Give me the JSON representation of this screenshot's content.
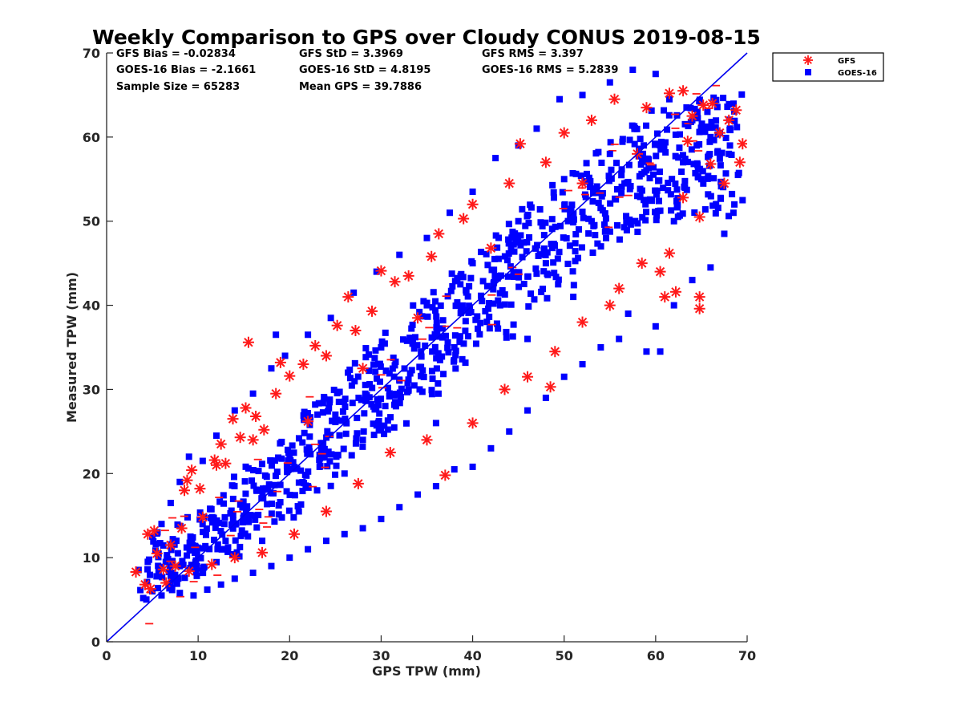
{
  "chart_data": {
    "type": "scatter",
    "title": "Weekly Comparison to GPS over Cloudy CONUS 2019-08-15",
    "xlabel": "GPS TPW (mm)",
    "ylabel": "Measured TPW (mm)",
    "xlim": [
      0,
      70
    ],
    "ylim": [
      0,
      70
    ],
    "xticks": [
      0,
      10,
      20,
      30,
      40,
      50,
      60,
      70
    ],
    "yticks": [
      0,
      10,
      20,
      30,
      40,
      50,
      60,
      70
    ],
    "grid": false,
    "legend_position": "outside-top-right",
    "reference_line": {
      "x": [
        0,
        70
      ],
      "y": [
        0,
        70
      ],
      "color": "#0000ee"
    },
    "stats": [
      [
        "GFS Bias = -0.02834",
        "GFS StD = 3.3969",
        "GFS RMS = 3.397"
      ],
      [
        "GOES-16 Bias = -2.1661",
        "GOES-16 StD = 4.8195",
        "GOES-16 RMS = 5.2839"
      ],
      [
        "Sample Size = 65283",
        "Mean GPS = 39.7886",
        ""
      ]
    ],
    "series": [
      {
        "name": "GFS",
        "marker": "asterisk",
        "color": "#ff1a1a",
        "points": [
          [
            3.2,
            8.3
          ],
          [
            4.5,
            12.8
          ],
          [
            4.8,
            6.3
          ],
          [
            5.5,
            10.5
          ],
          [
            6.2,
            8.6
          ],
          [
            7.0,
            11.5
          ],
          [
            8.2,
            13.5
          ],
          [
            8.8,
            19.2
          ],
          [
            9.3,
            20.4
          ],
          [
            10.2,
            18.2
          ],
          [
            11.8,
            21.6
          ],
          [
            12.5,
            23.5
          ],
          [
            13.0,
            21.2
          ],
          [
            13.8,
            26.5
          ],
          [
            14.6,
            24.3
          ],
          [
            15.2,
            27.8
          ],
          [
            15.5,
            35.6
          ],
          [
            16.3,
            26.8
          ],
          [
            17.2,
            25.2
          ],
          [
            18.5,
            29.5
          ],
          [
            19.0,
            33.2
          ],
          [
            20.0,
            31.6
          ],
          [
            21.5,
            33.0
          ],
          [
            22.8,
            35.2
          ],
          [
            24.0,
            34.0
          ],
          [
            25.2,
            37.6
          ],
          [
            26.4,
            41.0
          ],
          [
            27.2,
            37.0
          ],
          [
            29.0,
            39.3
          ],
          [
            30.0,
            44.1
          ],
          [
            31.5,
            42.8
          ],
          [
            33.0,
            43.5
          ],
          [
            35.5,
            45.8
          ],
          [
            36.3,
            48.5
          ],
          [
            39.0,
            50.3
          ],
          [
            40.0,
            52.0
          ],
          [
            44.0,
            54.5
          ],
          [
            45.2,
            59.2
          ],
          [
            48.0,
            57.0
          ],
          [
            50.0,
            60.5
          ],
          [
            53.0,
            62.0
          ],
          [
            55.5,
            64.5
          ],
          [
            59.0,
            63.5
          ],
          [
            61.5,
            65.2
          ],
          [
            63.0,
            65.5
          ],
          [
            64.0,
            62.5
          ],
          [
            65.2,
            63.8
          ],
          [
            66.2,
            64.0
          ],
          [
            67.0,
            60.5
          ],
          [
            68.0,
            62.0
          ],
          [
            68.8,
            63.2
          ],
          [
            69.5,
            59.2
          ],
          [
            69.2,
            57.0
          ],
          [
            67.5,
            54.5
          ],
          [
            66.0,
            56.8
          ],
          [
            64.8,
            50.5
          ],
          [
            63.0,
            52.8
          ],
          [
            61.5,
            46.2
          ],
          [
            60.5,
            44.0
          ],
          [
            62.2,
            41.6
          ],
          [
            61.0,
            41.0
          ],
          [
            64.8,
            41.0
          ],
          [
            64.8,
            39.6
          ],
          [
            58.5,
            45.0
          ],
          [
            56.0,
            42.0
          ],
          [
            55.0,
            40.0
          ],
          [
            52.0,
            38.0
          ],
          [
            49.0,
            34.5
          ],
          [
            48.5,
            30.3
          ],
          [
            46.0,
            31.5
          ],
          [
            43.5,
            30.0
          ],
          [
            40.0,
            26.0
          ],
          [
            37.0,
            19.8
          ],
          [
            35.0,
            24.0
          ],
          [
            31.0,
            22.5
          ],
          [
            27.5,
            18.8
          ],
          [
            24.0,
            15.5
          ],
          [
            20.5,
            12.8
          ],
          [
            17.0,
            10.6
          ],
          [
            14.0,
            10.0
          ],
          [
            11.5,
            9.2
          ],
          [
            9.0,
            8.4
          ],
          [
            6.5,
            7.0
          ],
          [
            4.2,
            6.8
          ],
          [
            22.0,
            26.2
          ],
          [
            28.0,
            32.5
          ],
          [
            34.0,
            38.5
          ],
          [
            42.0,
            46.8
          ],
          [
            52.0,
            54.5
          ],
          [
            58.0,
            58.0
          ],
          [
            63.5,
            59.5
          ],
          [
            10.5,
            14.8
          ],
          [
            7.5,
            9.0
          ],
          [
            5.2,
            13.2
          ],
          [
            8.5,
            18.0
          ],
          [
            16.0,
            24.0
          ],
          [
            12.0,
            21.0
          ]
        ]
      },
      {
        "name": "GOES-16",
        "marker": "square",
        "color": "#0000ff",
        "points": [
          [
            4.0,
            5.2
          ],
          [
            5.0,
            6.0
          ],
          [
            6.0,
            5.5
          ],
          [
            7.0,
            6.8
          ],
          [
            8.0,
            5.8
          ],
          [
            9.5,
            5.5
          ],
          [
            11.0,
            6.2
          ],
          [
            12.5,
            6.8
          ],
          [
            14.0,
            7.5
          ],
          [
            16.0,
            8.2
          ],
          [
            18.0,
            9.0
          ],
          [
            20.0,
            10.0
          ],
          [
            22.0,
            11.0
          ],
          [
            24.0,
            12.0
          ],
          [
            26.0,
            12.8
          ],
          [
            28.0,
            13.5
          ],
          [
            30.0,
            14.6
          ],
          [
            32.0,
            16.0
          ],
          [
            34.0,
            17.5
          ],
          [
            36.0,
            18.5
          ],
          [
            38.0,
            20.5
          ],
          [
            40.0,
            20.8
          ],
          [
            42.0,
            23.0
          ],
          [
            44.0,
            25.0
          ],
          [
            46.0,
            27.5
          ],
          [
            48.0,
            29.0
          ],
          [
            50.0,
            31.5
          ],
          [
            52.0,
            33.0
          ],
          [
            54.0,
            35.0
          ],
          [
            56.0,
            36.0
          ],
          [
            59.0,
            34.5
          ],
          [
            60.0,
            37.5
          ],
          [
            62.0,
            40.0
          ],
          [
            64.0,
            43.0
          ],
          [
            66.0,
            44.5
          ],
          [
            67.5,
            48.5
          ],
          [
            68.5,
            51.0
          ],
          [
            69.5,
            52.5
          ],
          [
            69.0,
            55.5
          ],
          [
            68.0,
            58.0
          ],
          [
            66.0,
            60.0
          ],
          [
            64.0,
            62.0
          ],
          [
            61.5,
            64.5
          ],
          [
            60.0,
            67.5
          ],
          [
            57.5,
            68.0
          ],
          [
            55.0,
            66.5
          ],
          [
            52.0,
            65.0
          ],
          [
            49.5,
            64.5
          ],
          [
            47.0,
            61.0
          ],
          [
            45.0,
            59.0
          ],
          [
            42.5,
            57.5
          ],
          [
            40.0,
            53.5
          ],
          [
            37.5,
            51.0
          ],
          [
            35.0,
            48.0
          ],
          [
            32.0,
            46.0
          ],
          [
            29.5,
            44.0
          ],
          [
            27.0,
            41.5
          ],
          [
            24.5,
            38.5
          ],
          [
            22.0,
            36.5
          ],
          [
            19.5,
            34.0
          ],
          [
            18.0,
            32.5
          ],
          [
            16.0,
            29.5
          ],
          [
            14.0,
            27.5
          ],
          [
            12.0,
            24.5
          ],
          [
            10.5,
            21.5
          ],
          [
            9.0,
            22.0
          ],
          [
            8.0,
            19.0
          ],
          [
            7.0,
            16.5
          ],
          [
            6.0,
            14.0
          ],
          [
            5.0,
            12.5
          ],
          [
            4.5,
            9.5
          ],
          [
            18.5,
            36.5
          ],
          [
            25.0,
            27.0
          ],
          [
            30.0,
            35.0
          ],
          [
            35.0,
            40.0
          ],
          [
            40.0,
            45.0
          ],
          [
            45.0,
            50.0
          ],
          [
            50.0,
            55.0
          ],
          [
            55.0,
            58.0
          ],
          [
            20.0,
            22.0
          ],
          [
            15.0,
            15.0
          ],
          [
            10.0,
            10.0
          ],
          [
            33.0,
            30.0
          ],
          [
            38.0,
            35.0
          ],
          [
            43.0,
            40.0
          ],
          [
            48.0,
            45.0
          ],
          [
            53.0,
            50.0
          ],
          [
            58.0,
            53.0
          ],
          [
            63.0,
            57.0
          ],
          [
            23.0,
            18.0
          ],
          [
            28.0,
            24.0
          ],
          [
            13.0,
            12.0
          ],
          [
            8.0,
            9.0
          ],
          [
            60.5,
            34.5
          ],
          [
            57.0,
            39.0
          ],
          [
            51.0,
            41.0
          ],
          [
            46.0,
            36.0
          ],
          [
            36.0,
            26.0
          ],
          [
            26.0,
            20.0
          ],
          [
            21.0,
            15.5
          ],
          [
            17.0,
            12.0
          ],
          [
            62.0,
            50.0
          ],
          [
            65.0,
            55.0
          ]
        ]
      }
    ]
  }
}
